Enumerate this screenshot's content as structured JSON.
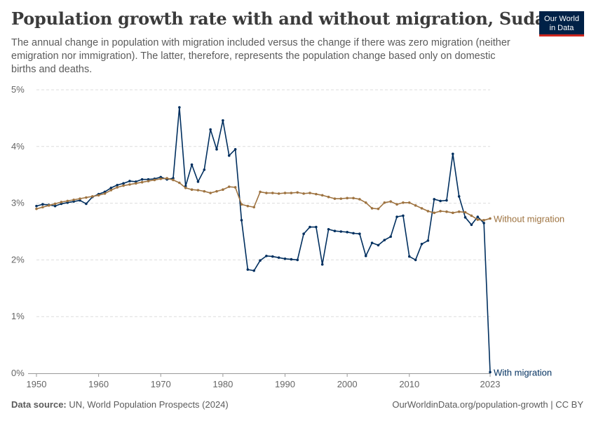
{
  "header": {
    "title": "Population growth rate with and without migration, Sudan",
    "subtitle": "The annual change in population with migration included versus the change if there was zero migration (neither emigration nor immigration). The latter, therefore, represents the population change based only on domestic births and deaths.",
    "logo_line1": "Our World",
    "logo_line2": "in Data"
  },
  "footer": {
    "source_label": "Data source:",
    "source_text": "UN, World Population Prospects (2024)",
    "url_text": "OurWorldinData.org/population-growth | CC BY"
  },
  "colors": {
    "with_migration": "#002f5f",
    "without_migration": "#9e7340",
    "grid": "#dddddd",
    "axis": "#999999"
  },
  "chart_data": {
    "type": "line",
    "title": "Population growth rate with and without migration, Sudan",
    "xlim": [
      1950,
      2023
    ],
    "ylim": [
      0,
      5
    ],
    "x_ticks": [
      1950,
      1960,
      1970,
      1980,
      1990,
      2000,
      2010,
      2023
    ],
    "y_ticks": [
      {
        "value": 0,
        "label": "0%"
      },
      {
        "value": 1,
        "label": "1%"
      },
      {
        "value": 2,
        "label": "2%"
      },
      {
        "value": 3,
        "label": "3%"
      },
      {
        "value": 4,
        "label": "4%"
      },
      {
        "value": 5,
        "label": "5%"
      }
    ],
    "grid": true,
    "start_year": 1950,
    "series": [
      {
        "name": "With migration",
        "color": "#002f5f",
        "values": [
          2.95,
          2.98,
          2.97,
          2.95,
          2.99,
          3.01,
          3.03,
          3.05,
          2.99,
          3.11,
          3.16,
          3.2,
          3.27,
          3.32,
          3.35,
          3.39,
          3.38,
          3.42,
          3.42,
          3.43,
          3.46,
          3.42,
          3.44,
          4.69,
          3.3,
          3.68,
          3.38,
          3.59,
          4.3,
          3.95,
          4.46,
          3.84,
          3.95,
          2.7,
          1.83,
          1.81,
          1.99,
          2.07,
          2.06,
          2.04,
          2.02,
          2.01,
          2.0,
          2.46,
          2.58,
          2.58,
          1.92,
          2.54,
          2.51,
          2.5,
          2.49,
          2.47,
          2.46,
          2.07,
          2.3,
          2.26,
          2.35,
          2.41,
          2.76,
          2.78,
          2.06,
          2.0,
          2.28,
          2.34,
          3.07,
          3.04,
          3.05,
          3.87,
          3.12,
          2.75,
          2.62,
          2.76,
          2.65,
          0.02
        ]
      },
      {
        "name": "Without migration",
        "color": "#9e7340",
        "values": [
          2.9,
          2.93,
          2.96,
          2.99,
          3.02,
          3.04,
          3.06,
          3.08,
          3.1,
          3.12,
          3.14,
          3.17,
          3.23,
          3.28,
          3.31,
          3.33,
          3.35,
          3.37,
          3.39,
          3.41,
          3.43,
          3.44,
          3.41,
          3.36,
          3.27,
          3.24,
          3.23,
          3.21,
          3.18,
          3.21,
          3.24,
          3.29,
          3.28,
          2.98,
          2.95,
          2.93,
          3.2,
          3.18,
          3.18,
          3.17,
          3.18,
          3.18,
          3.19,
          3.17,
          3.18,
          3.16,
          3.14,
          3.11,
          3.08,
          3.08,
          3.09,
          3.09,
          3.07,
          3.01,
          2.91,
          2.9,
          3.01,
          3.03,
          2.98,
          3.01,
          3.01,
          2.96,
          2.91,
          2.86,
          2.83,
          2.86,
          2.85,
          2.83,
          2.85,
          2.84,
          2.78,
          2.71,
          2.7,
          2.73
        ]
      }
    ]
  }
}
